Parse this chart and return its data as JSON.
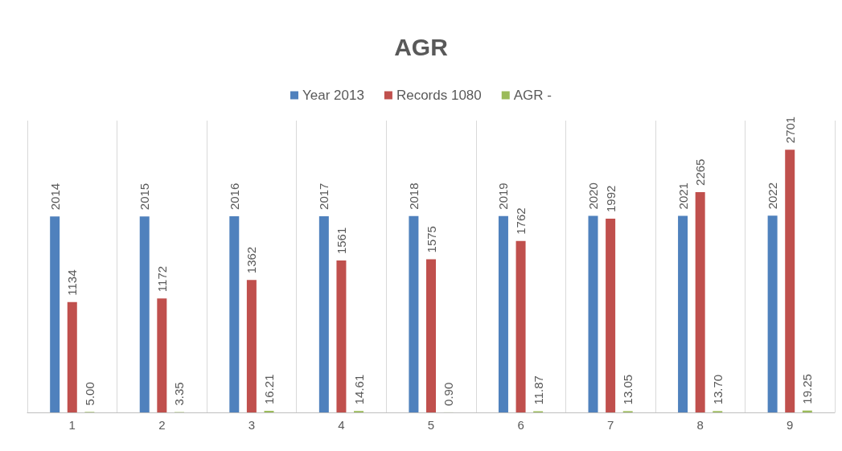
{
  "chart_data": {
    "type": "bar",
    "title": "AGR",
    "categories": [
      "1",
      "2",
      "3",
      "4",
      "5",
      "6",
      "7",
      "8",
      "9"
    ],
    "series": [
      {
        "name": "Year 2013",
        "color": "#4f81bd",
        "values": [
          2014,
          2015,
          2016,
          2017,
          2018,
          2019,
          2020,
          2021,
          2022
        ]
      },
      {
        "name": "Records 1080",
        "color": "#c0504d",
        "values": [
          1134,
          1172,
          1362,
          1561,
          1575,
          1762,
          1992,
          2265,
          2701
        ]
      },
      {
        "name": "AGR -",
        "color": "#9bbb59",
        "values": [
          5,
          3.35,
          16.21,
          14.61,
          0.9,
          11.87,
          13.05,
          13.7,
          19.25
        ],
        "value_labels": [
          "5.00",
          "3.35",
          "16.21",
          "14.61",
          "0.90",
          "11.87",
          "13.05",
          "13.70",
          "19.25"
        ]
      }
    ],
    "data_labels": true,
    "grid": "x",
    "legend": "top"
  }
}
